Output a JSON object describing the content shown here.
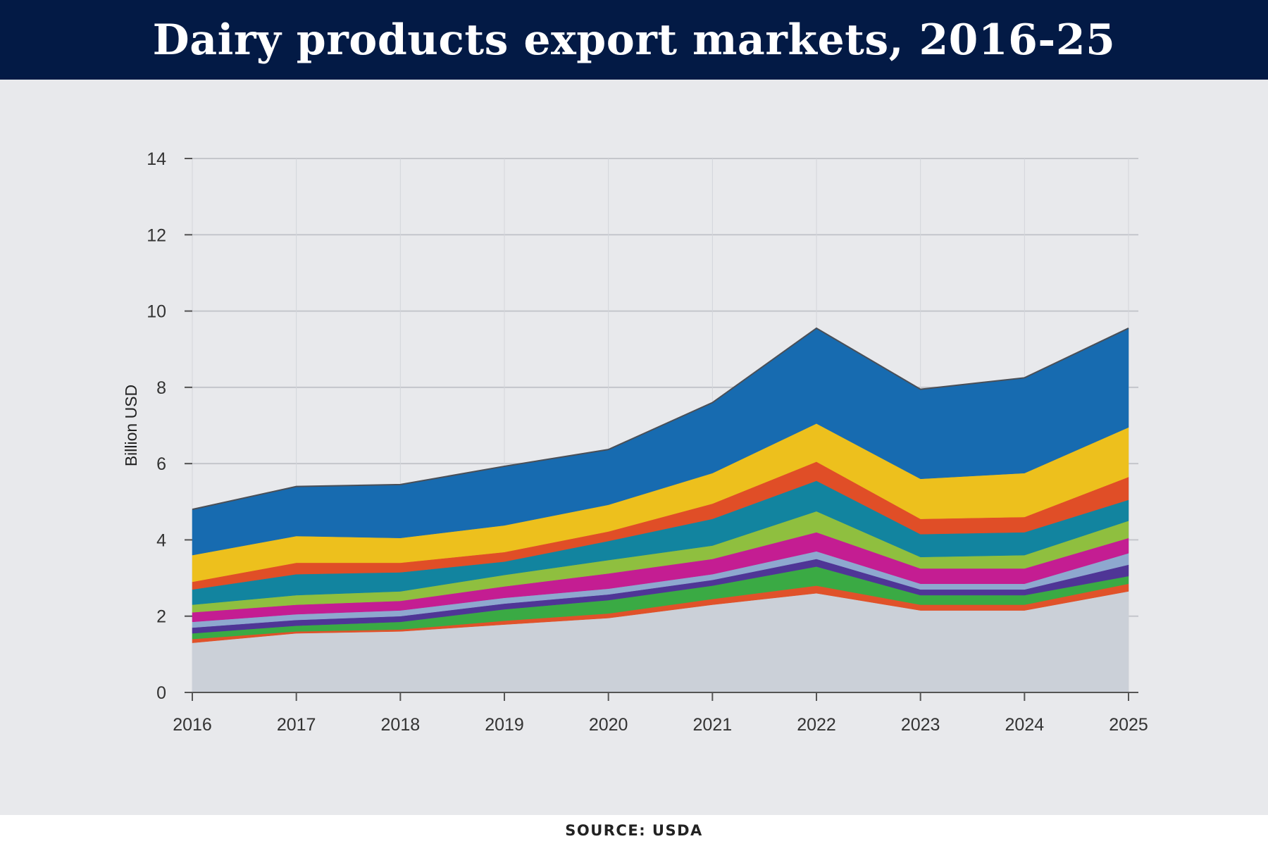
{
  "header": {
    "title": "Dairy products export markets, 2016-25"
  },
  "source": "SOURCE: USDA",
  "chart_data": {
    "type": "area",
    "stacked": true,
    "title": "Dairy products export markets, 2016-25",
    "xlabel": "",
    "ylabel": "Billion USD",
    "x": [
      2016,
      2017,
      2018,
      2019,
      2020,
      2021,
      2022,
      2023,
      2024,
      2025
    ],
    "ylim": [
      0,
      14
    ],
    "yticks": [
      0,
      2,
      4,
      6,
      8,
      10,
      12,
      14
    ],
    "grid": true,
    "series": [
      {
        "color": "#cbd0d8",
        "values": [
          1.3,
          1.55,
          1.6,
          1.78,
          1.95,
          2.3,
          2.6,
          2.15,
          2.15,
          2.65
        ]
      },
      {
        "color": "#e0522a",
        "values": [
          0.1,
          0.05,
          0.05,
          0.1,
          0.12,
          0.15,
          0.2,
          0.15,
          0.15,
          0.2
        ]
      },
      {
        "color": "#3aaa44",
        "values": [
          0.15,
          0.15,
          0.2,
          0.3,
          0.35,
          0.35,
          0.5,
          0.25,
          0.25,
          0.2
        ]
      },
      {
        "color": "#4f3596",
        "values": [
          0.15,
          0.15,
          0.15,
          0.15,
          0.15,
          0.15,
          0.2,
          0.15,
          0.15,
          0.3
        ]
      },
      {
        "color": "#8ea8cf",
        "values": [
          0.15,
          0.15,
          0.15,
          0.15,
          0.15,
          0.15,
          0.2,
          0.15,
          0.15,
          0.3
        ]
      },
      {
        "color": "#c41d92",
        "values": [
          0.25,
          0.25,
          0.25,
          0.3,
          0.4,
          0.4,
          0.5,
          0.4,
          0.4,
          0.4
        ]
      },
      {
        "color": "#8fbf3f",
        "values": [
          0.2,
          0.25,
          0.25,
          0.3,
          0.35,
          0.35,
          0.55,
          0.3,
          0.35,
          0.45
        ]
      },
      {
        "color": "#12849f",
        "values": [
          0.4,
          0.55,
          0.5,
          0.35,
          0.5,
          0.7,
          0.8,
          0.6,
          0.6,
          0.55
        ]
      },
      {
        "color": "#e04e27",
        "values": [
          0.2,
          0.3,
          0.25,
          0.25,
          0.25,
          0.4,
          0.5,
          0.4,
          0.4,
          0.6
        ]
      },
      {
        "color": "#edc01d",
        "values": [
          0.7,
          0.7,
          0.65,
          0.7,
          0.7,
          0.8,
          1.0,
          1.05,
          1.15,
          1.3
        ]
      },
      {
        "color": "#176bb0",
        "values": [
          1.2,
          1.3,
          1.4,
          1.55,
          1.45,
          1.85,
          2.5,
          2.35,
          2.5,
          2.6
        ]
      }
    ]
  }
}
